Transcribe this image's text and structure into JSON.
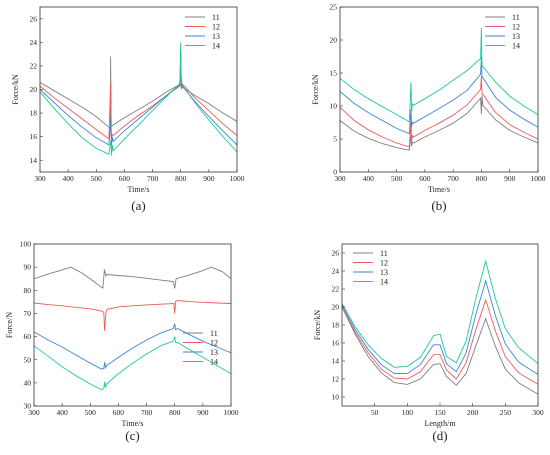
{
  "colors": {
    "11": "#7f7f7f",
    "12": "#f05a5a",
    "13": "#3a86d6",
    "14": "#1ec99a"
  },
  "chart_data": [
    {
      "type": "line",
      "caption": "(a)",
      "xlabel": "Time/s",
      "ylabel": "Force/kN",
      "xlim": [
        300,
        1000
      ],
      "ylim": [
        13,
        27
      ],
      "xticks": [
        300,
        400,
        500,
        600,
        700,
        800,
        900,
        1000
      ],
      "yticks": [
        14,
        16,
        18,
        20,
        22,
        24,
        26
      ],
      "legend": "top-right",
      "series": [
        {
          "name": "11",
          "x": [
            300,
            350,
            400,
            450,
            500,
            545,
            550,
            551,
            553,
            556,
            560,
            600,
            650,
            700,
            750,
            795,
            798,
            800,
            802,
            805,
            850,
            900,
            950,
            1000
          ],
          "y": [
            20.6,
            19.9,
            19.2,
            18.5,
            17.7,
            16.8,
            16.7,
            22.8,
            16.9,
            16.9,
            17.0,
            17.6,
            18.3,
            19.0,
            19.8,
            20.4,
            20.8,
            20.4,
            21.0,
            20.2,
            19.5,
            18.8,
            18.0,
            17.3
          ]
        },
        {
          "name": "12",
          "x": [
            300,
            350,
            400,
            450,
            500,
            545,
            551,
            553,
            556,
            560,
            600,
            650,
            700,
            750,
            797,
            800,
            802,
            805,
            850,
            900,
            950,
            1000
          ],
          "y": [
            20.3,
            19.3,
            18.4,
            17.5,
            16.6,
            15.8,
            20.6,
            15.9,
            16.2,
            16.1,
            16.9,
            17.8,
            18.6,
            19.5,
            20.3,
            21.2,
            20.0,
            20.5,
            19.3,
            18.2,
            17.1,
            16.1
          ]
        },
        {
          "name": "13",
          "x": [
            300,
            350,
            400,
            450,
            500,
            545,
            552,
            554,
            557,
            560,
            600,
            650,
            700,
            750,
            797,
            800,
            802,
            805,
            850,
            900,
            950,
            1000
          ],
          "y": [
            20.0,
            18.9,
            17.8,
            16.8,
            15.9,
            15.3,
            17.4,
            15.3,
            16.0,
            15.6,
            16.5,
            17.5,
            18.5,
            19.5,
            20.4,
            23.3,
            20.3,
            20.3,
            19.0,
            17.7,
            16.5,
            15.3
          ]
        },
        {
          "name": "14",
          "x": [
            300,
            350,
            400,
            450,
            500,
            545,
            552,
            554,
            557,
            560,
            600,
            650,
            700,
            750,
            797,
            800,
            802,
            805,
            850,
            900,
            950,
            1000
          ],
          "y": [
            19.8,
            18.4,
            17.1,
            15.9,
            15.0,
            14.5,
            15.7,
            14.4,
            15.3,
            14.8,
            15.8,
            17.0,
            18.2,
            19.4,
            20.5,
            24.0,
            20.6,
            20.4,
            18.9,
            17.4,
            16.0,
            14.7
          ]
        }
      ]
    },
    {
      "type": "line",
      "caption": "(b)",
      "xlabel": "Time/s",
      "ylabel": "Force/kN",
      "xlim": [
        300,
        1000
      ],
      "ylim": [
        0,
        25
      ],
      "xticks": [
        300,
        400,
        500,
        600,
        700,
        800,
        900,
        1000
      ],
      "yticks": [
        0,
        5,
        10,
        15,
        20,
        25
      ],
      "legend": "top-right",
      "series": [
        {
          "name": "11",
          "x": [
            300,
            350,
            400,
            450,
            500,
            545,
            551,
            553,
            556,
            560,
            600,
            650,
            700,
            750,
            797,
            800,
            802,
            805,
            850,
            900,
            950,
            1000
          ],
          "y": [
            7.8,
            6.2,
            5.1,
            4.3,
            3.7,
            3.3,
            5.6,
            3.9,
            4.5,
            4.4,
            5.3,
            6.3,
            7.4,
            8.9,
            11.2,
            8.8,
            11.6,
            10.1,
            7.9,
            6.3,
            5.3,
            4.4
          ]
        },
        {
          "name": "12",
          "x": [
            300,
            350,
            400,
            450,
            500,
            545,
            551,
            553,
            556,
            560,
            600,
            650,
            700,
            750,
            797,
            800,
            802,
            805,
            850,
            900,
            950,
            1000
          ],
          "y": [
            9.8,
            7.8,
            6.4,
            5.3,
            4.4,
            3.8,
            7.6,
            4.6,
            5.5,
            5.3,
            6.3,
            7.4,
            8.6,
            10.2,
            12.5,
            14.5,
            11.8,
            11.8,
            9.0,
            7.2,
            6.0,
            5.0
          ]
        },
        {
          "name": "13",
          "x": [
            300,
            350,
            400,
            450,
            500,
            545,
            551,
            553,
            556,
            560,
            600,
            650,
            700,
            750,
            797,
            800,
            802,
            805,
            850,
            900,
            950,
            1000
          ],
          "y": [
            12.2,
            10.4,
            9.0,
            7.8,
            6.6,
            5.8,
            9.5,
            6.8,
            7.5,
            7.4,
            8.4,
            9.6,
            10.9,
            12.4,
            14.8,
            17.5,
            14.5,
            14.3,
            11.3,
            9.4,
            8.0,
            6.8
          ]
        },
        {
          "name": "14",
          "x": [
            300,
            350,
            400,
            450,
            500,
            545,
            551,
            553,
            556,
            560,
            600,
            650,
            700,
            750,
            797,
            800,
            802,
            805,
            850,
            900,
            950,
            1000
          ],
          "y": [
            14.2,
            12.5,
            11.1,
            9.9,
            8.7,
            7.6,
            13.6,
            9.2,
            10.3,
            10.1,
            11.1,
            12.4,
            13.9,
            15.4,
            17.2,
            21.8,
            16.0,
            16.0,
            13.6,
            11.5,
            10.0,
            8.7
          ]
        }
      ]
    },
    {
      "type": "line",
      "caption": "(c)",
      "xlabel": "Time/s",
      "ylabel": "Force/N",
      "xlim": [
        300,
        1000
      ],
      "ylim": [
        30,
        100
      ],
      "xticks": [
        300,
        400,
        500,
        600,
        700,
        800,
        900,
        1000
      ],
      "yticks": [
        30,
        40,
        50,
        60,
        70,
        80,
        90,
        100
      ],
      "legend": "bottom-right",
      "series": [
        {
          "name": "11",
          "x": [
            300,
            350,
            400,
            430,
            470,
            510,
            540,
            545,
            550,
            555,
            560,
            600,
            650,
            700,
            750,
            795,
            800,
            805,
            850,
            900,
            930,
            970,
            1000
          ],
          "y": [
            85.0,
            87.0,
            88.8,
            90.0,
            87.5,
            84.0,
            81.3,
            81.0,
            89.0,
            86.2,
            86.8,
            86.4,
            85.9,
            85.2,
            84.4,
            83.8,
            80.8,
            85.0,
            86.5,
            88.5,
            90.0,
            88.0,
            85.0
          ]
        },
        {
          "name": "12",
          "x": [
            300,
            350,
            400,
            450,
            500,
            540,
            548,
            551,
            553,
            556,
            560,
            600,
            650,
            700,
            750,
            797,
            800,
            803,
            810,
            850,
            900,
            950,
            1000
          ],
          "y": [
            74.5,
            73.8,
            73.3,
            72.6,
            72.0,
            71.0,
            70.5,
            62.5,
            66.0,
            70.5,
            71.8,
            72.8,
            73.3,
            73.7,
            74.0,
            74.3,
            70.0,
            75.2,
            75.6,
            75.1,
            74.8,
            74.5,
            74.3
          ]
        },
        {
          "name": "13",
          "x": [
            300,
            350,
            400,
            450,
            500,
            540,
            548,
            551,
            554,
            558,
            600,
            650,
            700,
            750,
            795,
            800,
            803,
            810,
            850,
            900,
            950,
            1000
          ],
          "y": [
            62.0,
            58.5,
            55.5,
            52.0,
            48.5,
            46.0,
            46.2,
            49.0,
            46.5,
            47.5,
            51.0,
            55.0,
            58.5,
            61.5,
            63.5,
            65.5,
            63.0,
            63.5,
            61.0,
            58.0,
            55.5,
            53.0
          ]
        },
        {
          "name": "14",
          "x": [
            300,
            350,
            400,
            450,
            500,
            540,
            548,
            551,
            554,
            558,
            600,
            650,
            700,
            750,
            795,
            800,
            803,
            810,
            850,
            900,
            950,
            1000
          ],
          "y": [
            56.0,
            51.5,
            47.0,
            43.0,
            39.5,
            37.0,
            37.5,
            40.5,
            38.0,
            39.5,
            44.0,
            48.5,
            52.5,
            56.0,
            58.0,
            60.0,
            57.5,
            57.5,
            54.5,
            51.0,
            47.5,
            44.0
          ]
        }
      ]
    },
    {
      "type": "line",
      "caption": "(d)",
      "xlabel": "Length/m",
      "ylabel": "Force/kN",
      "xlim": [
        0,
        300
      ],
      "ylim": [
        9,
        27
      ],
      "xticks": [
        50,
        100,
        150,
        200,
        250,
        300
      ],
      "yticks": [
        10,
        12,
        14,
        16,
        18,
        20,
        22,
        24,
        26
      ],
      "legend": "top-left",
      "series": [
        {
          "name": "11",
          "x": [
            0,
            20,
            40,
            60,
            80,
            100,
            120,
            140,
            150,
            160,
            175,
            190,
            205,
            220,
            235,
            250,
            270,
            300
          ],
          "y": [
            20.0,
            17.0,
            14.5,
            12.7,
            11.6,
            11.4,
            12.0,
            13.6,
            13.7,
            12.3,
            11.3,
            12.6,
            15.7,
            18.7,
            15.6,
            13.1,
            11.6,
            10.3
          ]
        },
        {
          "name": "12",
          "x": [
            0,
            20,
            40,
            60,
            80,
            100,
            120,
            140,
            150,
            160,
            175,
            190,
            205,
            220,
            235,
            250,
            270,
            300
          ],
          "y": [
            20.0,
            17.2,
            14.9,
            13.1,
            12.1,
            12.0,
            12.8,
            14.7,
            14.7,
            13.0,
            12.0,
            13.8,
            17.5,
            20.8,
            17.3,
            14.5,
            12.7,
            11.4
          ]
        },
        {
          "name": "13",
          "x": [
            0,
            20,
            40,
            60,
            80,
            100,
            120,
            140,
            150,
            160,
            175,
            190,
            205,
            220,
            235,
            250,
            270,
            300
          ],
          "y": [
            20.2,
            17.5,
            15.3,
            13.6,
            12.6,
            12.6,
            13.6,
            15.8,
            15.8,
            13.7,
            12.8,
            14.9,
            19.2,
            22.9,
            19.0,
            15.9,
            13.9,
            12.5
          ]
        },
        {
          "name": "14",
          "x": [
            0,
            20,
            40,
            60,
            80,
            100,
            120,
            140,
            150,
            160,
            175,
            190,
            205,
            220,
            235,
            250,
            270,
            300
          ],
          "y": [
            20.4,
            17.8,
            15.8,
            14.3,
            13.3,
            13.4,
            14.4,
            16.8,
            17.0,
            14.5,
            13.8,
            16.2,
            21.0,
            25.1,
            20.9,
            17.6,
            15.5,
            13.7
          ]
        }
      ]
    }
  ]
}
